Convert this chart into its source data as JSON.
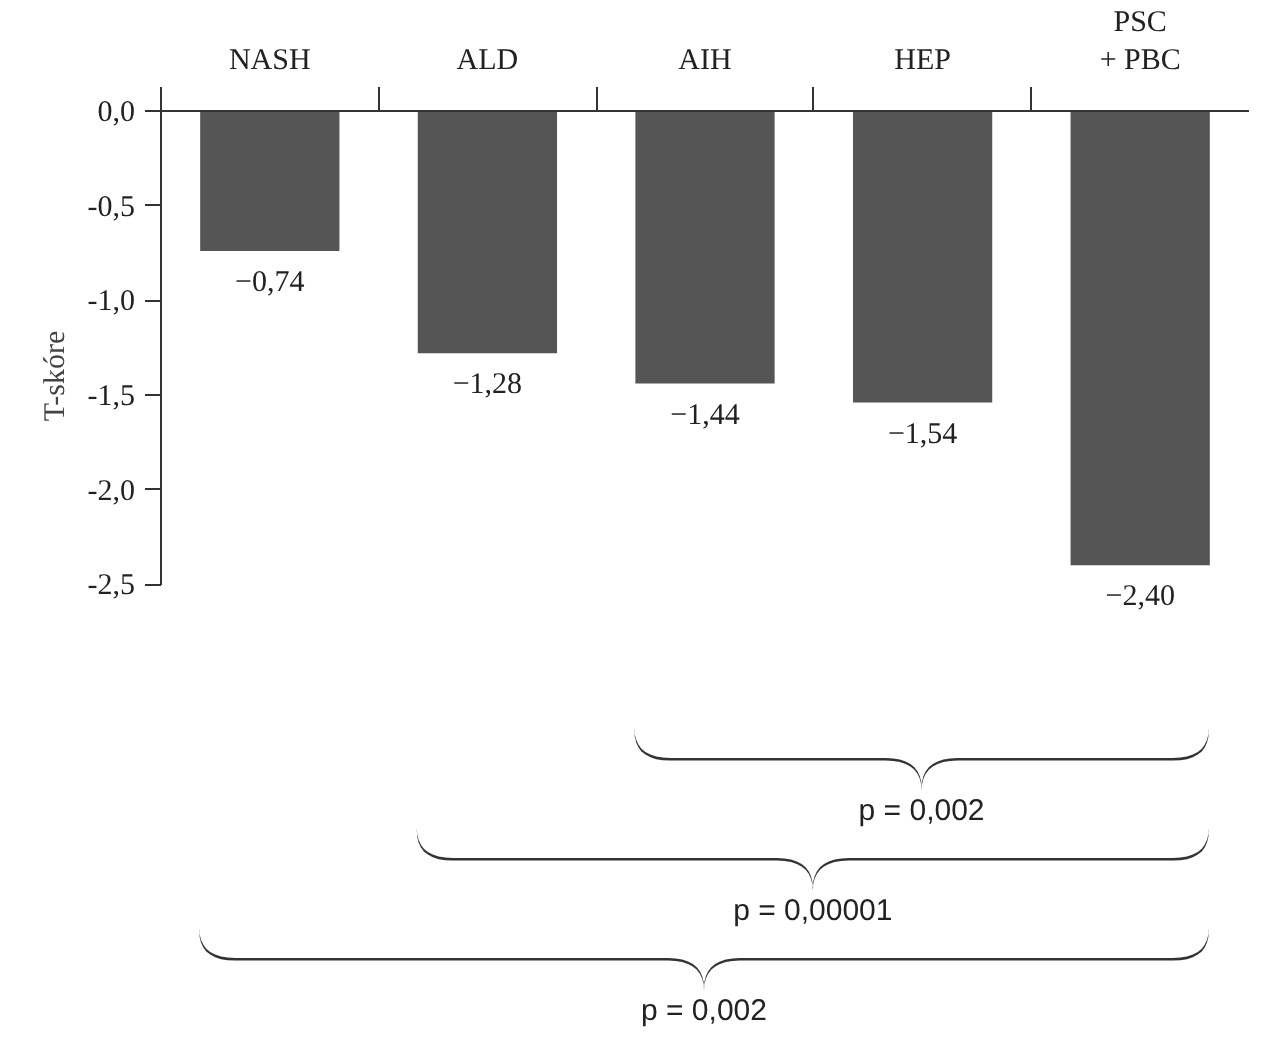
{
  "chart_data": {
    "type": "bar",
    "ylabel": "T-skóre",
    "categories": [
      "NASH",
      "ALD",
      "AIH",
      "HEP",
      "PSC\n+ PBC"
    ],
    "values": [
      -0.74,
      -1.28,
      -1.44,
      -1.54,
      -2.4
    ],
    "value_labels": [
      "−0,74",
      "−1,28",
      "−1,44",
      "−1,54",
      "−2,40"
    ],
    "color": "#555555",
    "ylim": [
      -2.5,
      0
    ],
    "yticks": [
      {
        "value": 0,
        "label": "0,0"
      },
      {
        "value": -0.5,
        "label": "-0,5"
      },
      {
        "value": -1.0,
        "label": "-1,0"
      },
      {
        "value": -1.5,
        "label": "-1,5"
      },
      {
        "value": -2.0,
        "label": "-2,0"
      },
      {
        "value": -2.5,
        "label": "-2,5"
      }
    ],
    "grid": false,
    "annotations": [
      "p = 0,002",
      "p = 0,00001",
      "p = 0,002"
    ]
  }
}
